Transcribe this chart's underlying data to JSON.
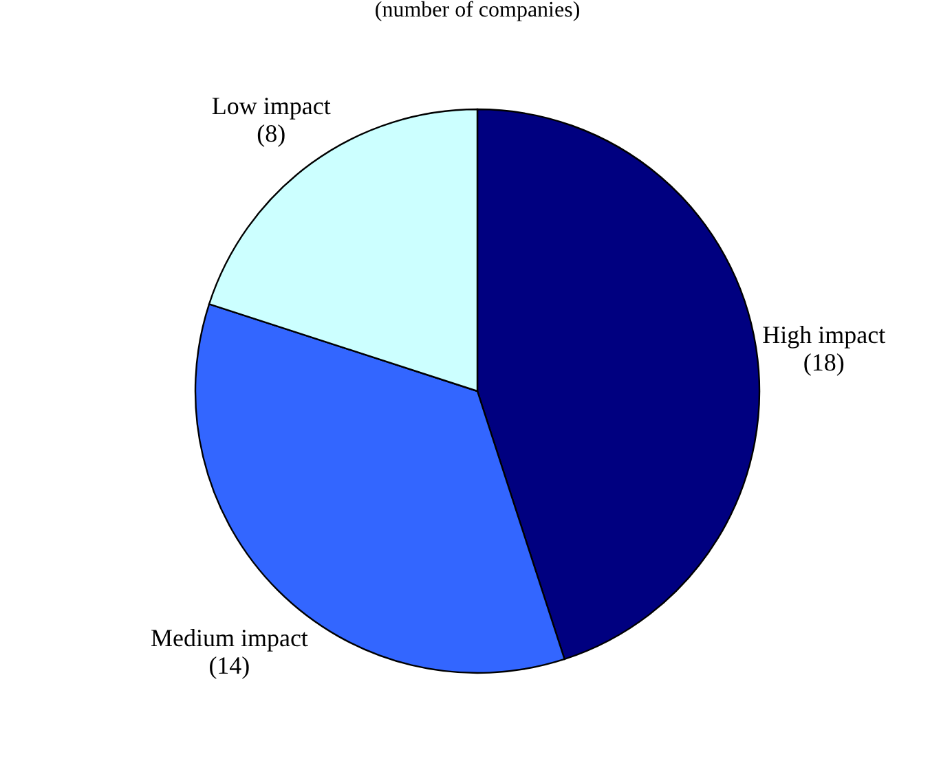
{
  "chart_data": {
    "type": "pie",
    "subtitle": "(number of companies)",
    "categories": [
      "High impact",
      "Medium impact",
      "Low impact"
    ],
    "values": [
      18,
      14,
      8
    ],
    "value_labels": [
      "(18)",
      "(14)",
      "(8)"
    ],
    "colors": [
      "#000080",
      "#3366ff",
      "#ccffff"
    ]
  }
}
